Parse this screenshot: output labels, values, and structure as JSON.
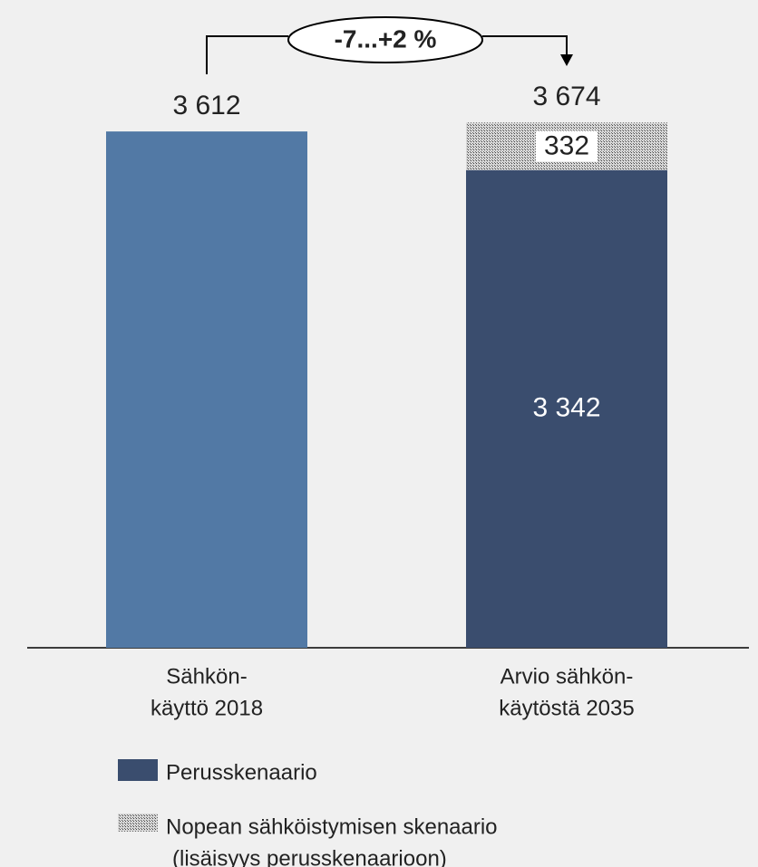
{
  "chart_data": {
    "type": "stacked_bar",
    "categories": [
      [
        "Sähkön-",
        "käyttö 2018"
      ],
      [
        "Arvio sähkön-",
        "käytöstä 2035"
      ]
    ],
    "series": [
      {
        "name": "Perusskenaario",
        "color": "#3a4d6e",
        "bar_colors": [
          "#5279a5",
          "#3a4d6e"
        ],
        "values": [
          3612,
          3342
        ],
        "value_labels": [
          "3 612",
          "3 342"
        ]
      },
      {
        "name": "Nopean sähköistymisen skenaario",
        "name_detail": "(lisäisyys perusskenaarioon)",
        "color": "pattern",
        "values": [
          null,
          332
        ],
        "value_labels": [
          null,
          "332"
        ]
      }
    ],
    "totals": [
      null,
      3674
    ],
    "total_labels": [
      null,
      "3 674"
    ],
    "annotation": "-7...+2 %",
    "ylim": [
      0,
      4500
    ]
  }
}
